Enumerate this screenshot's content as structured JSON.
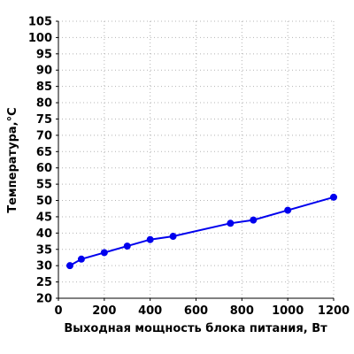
{
  "chart_data": {
    "type": "line",
    "title": "",
    "xlabel": "Выходная мощность блока питания, Вт",
    "ylabel": "Температура,°С",
    "xlim": [
      0,
      1200
    ],
    "ylim": [
      20,
      105
    ],
    "xticks": [
      0,
      200,
      400,
      600,
      800,
      1000,
      1200
    ],
    "yticks": [
      20,
      25,
      30,
      35,
      40,
      45,
      50,
      55,
      60,
      65,
      70,
      75,
      80,
      85,
      90,
      95,
      100,
      105
    ],
    "xtick_labels": [
      "0",
      "200",
      "400",
      "600",
      "800",
      "1000",
      "1200"
    ],
    "ytick_labels": [
      "20",
      "25",
      "30",
      "35",
      "40",
      "45",
      "50",
      "55",
      "60",
      "65",
      "70",
      "75",
      "80",
      "85",
      "90",
      "95",
      "100",
      "105"
    ],
    "grid": true,
    "legend": "none",
    "series": [
      {
        "color": "#0000ee",
        "x": [
          50,
          100,
          200,
          300,
          400,
          500,
          750,
          850,
          1000,
          1200
        ],
        "y": [
          30,
          32,
          34,
          36,
          38,
          39,
          43,
          44,
          47,
          51
        ]
      }
    ]
  }
}
